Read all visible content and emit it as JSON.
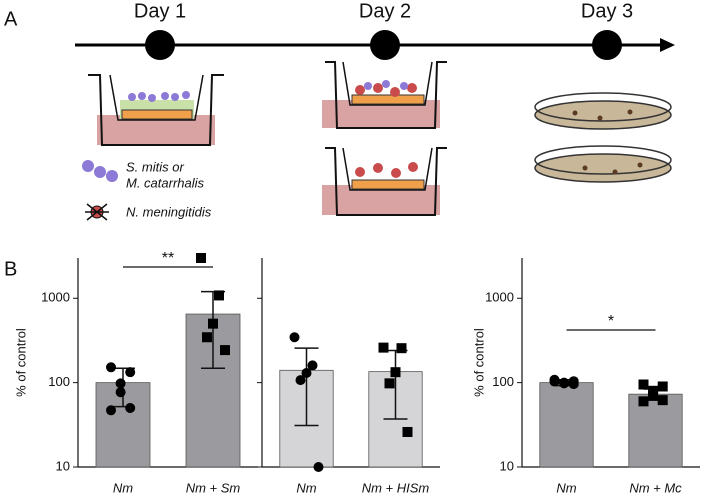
{
  "panel_a": {
    "label": "A",
    "days": [
      "Day 1",
      "Day 2",
      "Day 3"
    ],
    "legend": [
      "S. mitis or",
      "M. catarrhalis",
      "N. meningitidis"
    ]
  },
  "panel_b": {
    "label": "B"
  },
  "chart_data": [
    {
      "type": "bar",
      "categories": [
        "Nm",
        "Nm + Sm"
      ],
      "values": [
        100,
        650
      ],
      "error_low": [
        52,
        148
      ],
      "error_high": [
        148,
        1200
      ],
      "points": [
        [
          152,
          133,
          98,
          77,
          50,
          47
        ],
        [
          3000,
          1080,
          500,
          345,
          243
        ]
      ],
      "markers": [
        "circle",
        "square"
      ],
      "color": "#9b9b9f",
      "ylabel": "% of control",
      "log_scale": true,
      "ylim": [
        10,
        3000
      ],
      "yticks": [
        10,
        100,
        1000
      ],
      "tick_labels": true,
      "significance": "**"
    },
    {
      "type": "bar",
      "categories": [
        "Nm",
        "Nm + HISm"
      ],
      "values": [
        140,
        135
      ],
      "error_low": [
        31,
        37
      ],
      "error_high": [
        256,
        240
      ],
      "points": [
        [
          345,
          160,
          130,
          107,
          10
        ],
        [
          260,
          256,
          133,
          98,
          26
        ]
      ],
      "markers": [
        "circle",
        "square"
      ],
      "color": "#d5d5d7",
      "log_scale": true,
      "ylim": [
        10,
        3000
      ],
      "yticks": [
        10,
        100,
        1000
      ],
      "tick_labels": false
    },
    {
      "type": "bar",
      "categories": [
        "Nm",
        "Nm + Mc"
      ],
      "values": [
        100,
        73
      ],
      "error_low": [
        92,
        62
      ],
      "error_high": [
        108,
        84
      ],
      "points": [
        [
          108,
          104,
          100,
          98,
          96,
          103
        ],
        [
          95,
          90,
          80,
          70,
          62,
          60
        ]
      ],
      "markers": [
        "circle",
        "square"
      ],
      "color": "#9b9b9f",
      "ylabel": "% of control",
      "log_scale": true,
      "ylim": [
        10,
        3000
      ],
      "yticks": [
        10,
        100,
        1000
      ],
      "tick_labels": true,
      "significance": "*"
    }
  ]
}
